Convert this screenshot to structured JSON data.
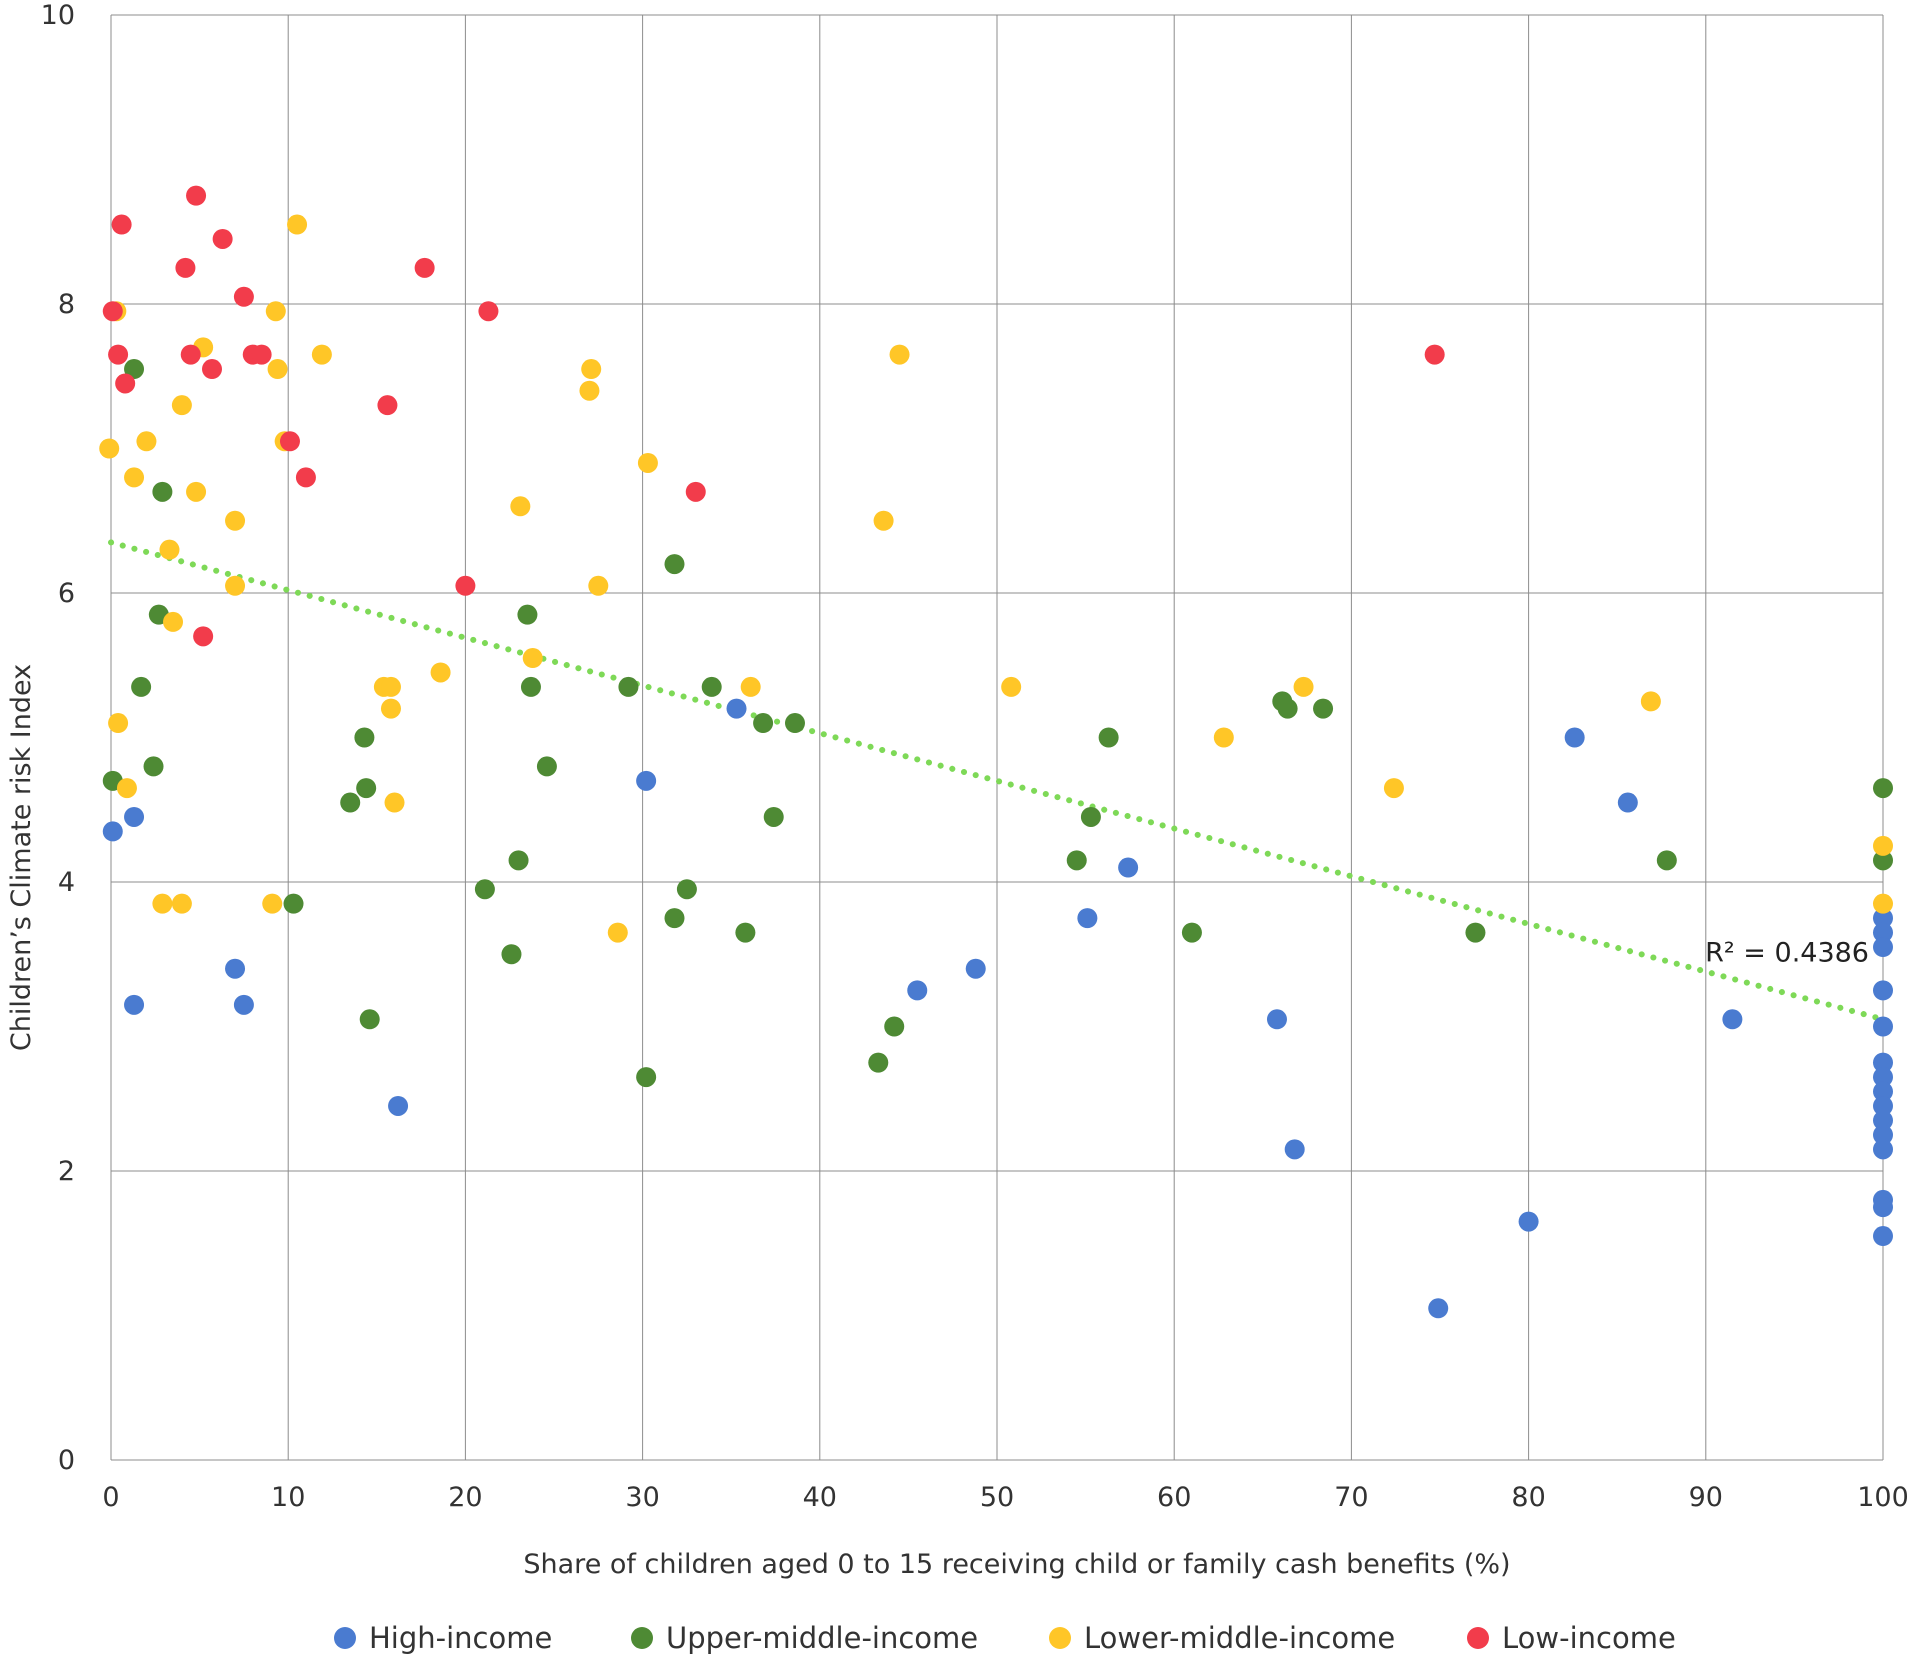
{
  "chart_data": {
    "type": "scatter",
    "xlabel": "Share of children aged 0 to 15 receiving child or family cash benefits (%)",
    "ylabel": "Children’s Climate risk Index",
    "xlim": [
      0,
      100
    ],
    "ylim": [
      0,
      10
    ],
    "x_ticks": [
      "0",
      "10",
      "20",
      "30",
      "40",
      "50",
      "60",
      "70",
      "80",
      "90",
      "100"
    ],
    "y_ticks": [
      "0",
      "2",
      "4",
      "6",
      "8",
      "10"
    ],
    "grid": true,
    "legend_position": "bottom",
    "trendline": {
      "type": "linear",
      "x": [
        0,
        100
      ],
      "y": [
        6.35,
        3.05
      ],
      "color": "#7ed957",
      "style": "dotted"
    },
    "annotation": "R² = 0.4386",
    "series": [
      {
        "name": "High-income",
        "color": "#4a7bd0",
        "points": [
          [
            0.1,
            4.35
          ],
          [
            1.3,
            4.45
          ],
          [
            1.3,
            3.15
          ],
          [
            7.0,
            3.4
          ],
          [
            7.5,
            3.15
          ],
          [
            16.2,
            2.45
          ],
          [
            30.2,
            4.7
          ],
          [
            35.3,
            5.2
          ],
          [
            45.5,
            3.25
          ],
          [
            48.8,
            3.4
          ],
          [
            55.1,
            3.75
          ],
          [
            57.4,
            4.1
          ],
          [
            65.8,
            3.05
          ],
          [
            66.8,
            2.15
          ],
          [
            74.9,
            1.05
          ],
          [
            80.0,
            1.65
          ],
          [
            82.6,
            5.0
          ],
          [
            85.6,
            4.55
          ],
          [
            91.5,
            3.05
          ],
          [
            100,
            3.75
          ],
          [
            100,
            3.65
          ],
          [
            100,
            3.55
          ],
          [
            100,
            3.25
          ],
          [
            100,
            3.0
          ],
          [
            100,
            2.75
          ],
          [
            100,
            2.65
          ],
          [
            100,
            2.55
          ],
          [
            100,
            2.45
          ],
          [
            100,
            2.35
          ],
          [
            100,
            2.25
          ],
          [
            100,
            2.15
          ],
          [
            100,
            1.8
          ],
          [
            100,
            1.75
          ],
          [
            100,
            1.55
          ]
        ]
      },
      {
        "name": "Upper-middle-income",
        "color": "#4e8a34",
        "points": [
          [
            0.1,
            4.7
          ],
          [
            1.3,
            7.55
          ],
          [
            1.7,
            5.35
          ],
          [
            2.4,
            4.8
          ],
          [
            2.7,
            5.85
          ],
          [
            2.9,
            6.7
          ],
          [
            10.3,
            3.85
          ],
          [
            13.5,
            4.55
          ],
          [
            14.3,
            5.0
          ],
          [
            14.4,
            4.65
          ],
          [
            14.6,
            3.05
          ],
          [
            21.1,
            3.95
          ],
          [
            22.6,
            3.5
          ],
          [
            23.0,
            4.15
          ],
          [
            23.5,
            5.85
          ],
          [
            23.7,
            5.35
          ],
          [
            24.6,
            4.8
          ],
          [
            29.2,
            5.35
          ],
          [
            30.2,
            2.65
          ],
          [
            31.8,
            6.2
          ],
          [
            31.8,
            3.75
          ],
          [
            32.5,
            3.95
          ],
          [
            33.9,
            5.35
          ],
          [
            35.8,
            3.65
          ],
          [
            36.8,
            5.1
          ],
          [
            37.4,
            4.45
          ],
          [
            38.6,
            5.1
          ],
          [
            43.3,
            2.75
          ],
          [
            44.2,
            3.0
          ],
          [
            54.5,
            4.15
          ],
          [
            55.3,
            4.45
          ],
          [
            56.3,
            5.0
          ],
          [
            61.0,
            3.65
          ],
          [
            66.1,
            5.25
          ],
          [
            66.4,
            5.2
          ],
          [
            68.4,
            5.2
          ],
          [
            77.0,
            3.65
          ],
          [
            87.8,
            4.15
          ],
          [
            100,
            4.65
          ],
          [
            100,
            4.15
          ]
        ]
      },
      {
        "name": "Lower-middle-income",
        "color": "#ffc627",
        "points": [
          [
            -0.1,
            7.0
          ],
          [
            0.3,
            7.95
          ],
          [
            0.4,
            5.1
          ],
          [
            0.9,
            4.65
          ],
          [
            1.3,
            6.8
          ],
          [
            2.0,
            7.05
          ],
          [
            2.9,
            3.85
          ],
          [
            3.3,
            6.3
          ],
          [
            3.5,
            5.8
          ],
          [
            4.0,
            7.3
          ],
          [
            4.0,
            3.85
          ],
          [
            4.8,
            6.7
          ],
          [
            5.2,
            7.7
          ],
          [
            7.0,
            6.5
          ],
          [
            7.0,
            6.05
          ],
          [
            9.1,
            3.85
          ],
          [
            9.3,
            7.95
          ],
          [
            9.4,
            7.55
          ],
          [
            9.8,
            7.05
          ],
          [
            10.5,
            8.55
          ],
          [
            11.9,
            7.65
          ],
          [
            15.4,
            5.35
          ],
          [
            15.8,
            5.35
          ],
          [
            15.8,
            5.2
          ],
          [
            16.0,
            4.55
          ],
          [
            18.6,
            5.45
          ],
          [
            23.1,
            6.6
          ],
          [
            23.8,
            5.55
          ],
          [
            27.0,
            7.4
          ],
          [
            27.1,
            7.55
          ],
          [
            27.5,
            6.05
          ],
          [
            28.6,
            3.65
          ],
          [
            30.3,
            6.9
          ],
          [
            36.1,
            5.35
          ],
          [
            43.6,
            6.5
          ],
          [
            44.5,
            7.65
          ],
          [
            50.8,
            5.35
          ],
          [
            62.8,
            5.0
          ],
          [
            67.3,
            5.35
          ],
          [
            72.4,
            4.65
          ],
          [
            86.9,
            5.25
          ],
          [
            100,
            4.25
          ],
          [
            100,
            3.85
          ]
        ]
      },
      {
        "name": "Low-income",
        "color": "#f23c4b",
        "points": [
          [
            0.1,
            7.95
          ],
          [
            0.4,
            7.65
          ],
          [
            0.6,
            8.55
          ],
          [
            0.8,
            7.45
          ],
          [
            4.2,
            8.25
          ],
          [
            4.5,
            7.65
          ],
          [
            4.8,
            8.75
          ],
          [
            5.2,
            5.7
          ],
          [
            5.7,
            7.55
          ],
          [
            6.3,
            8.45
          ],
          [
            7.5,
            8.05
          ],
          [
            8.0,
            7.65
          ],
          [
            8.5,
            7.65
          ],
          [
            10.1,
            7.05
          ],
          [
            11.0,
            6.8
          ],
          [
            15.6,
            7.3
          ],
          [
            17.7,
            8.25
          ],
          [
            20.0,
            6.05
          ],
          [
            21.3,
            7.95
          ],
          [
            33.0,
            6.7
          ],
          [
            74.7,
            7.65
          ]
        ]
      }
    ]
  }
}
